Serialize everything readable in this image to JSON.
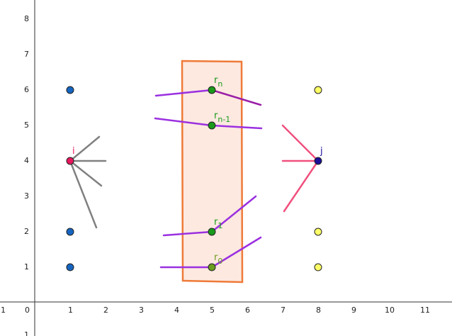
{
  "axes": {
    "x_ticks": [
      "1",
      "0",
      "1",
      "2",
      "3",
      "4",
      "5",
      "6",
      "7",
      "8",
      "9",
      "10",
      "11"
    ],
    "y_ticks": [
      "1",
      "2",
      "3",
      "4",
      "5",
      "6",
      "7",
      "8"
    ],
    "y_bottom_tick": "1"
  },
  "colors": {
    "blue_point": "#1565c0",
    "yellow_point": "#ffff66",
    "green_point": "#1a9a1a",
    "olive_point": "#6b9e1f",
    "red_point": "#e8175d",
    "navy_point": "#1a0d99",
    "purple_segment": "#9b30e0",
    "dark_purple_segment": "#9a1fa8",
    "pink_segment": "#f0507e",
    "gray_segment": "#808080",
    "rect_stroke": "#ef7a38",
    "rect_fill": "#fde9e0"
  },
  "points": {
    "i": {
      "label": "i",
      "x": 1,
      "y": 4
    },
    "j": {
      "label": "j",
      "x": 8,
      "y": 4
    },
    "r_n": {
      "label_main": "r",
      "label_sub": "n",
      "x": 5,
      "y": 6
    },
    "r_n_minus_1": {
      "label_main": "r",
      "label_sub": "n-1",
      "x": 5,
      "y": 5
    },
    "r_1": {
      "label_main": "r",
      "label_sub": "1",
      "x": 5,
      "y": 2
    },
    "r_0": {
      "label_main": "r",
      "label_sub": "0",
      "x": 5,
      "y": 1
    },
    "left_points": [
      [
        1,
        6
      ],
      [
        1,
        2
      ],
      [
        1,
        1
      ]
    ],
    "right_points": [
      [
        8,
        6
      ],
      [
        8,
        2
      ],
      [
        8,
        1
      ]
    ]
  }
}
